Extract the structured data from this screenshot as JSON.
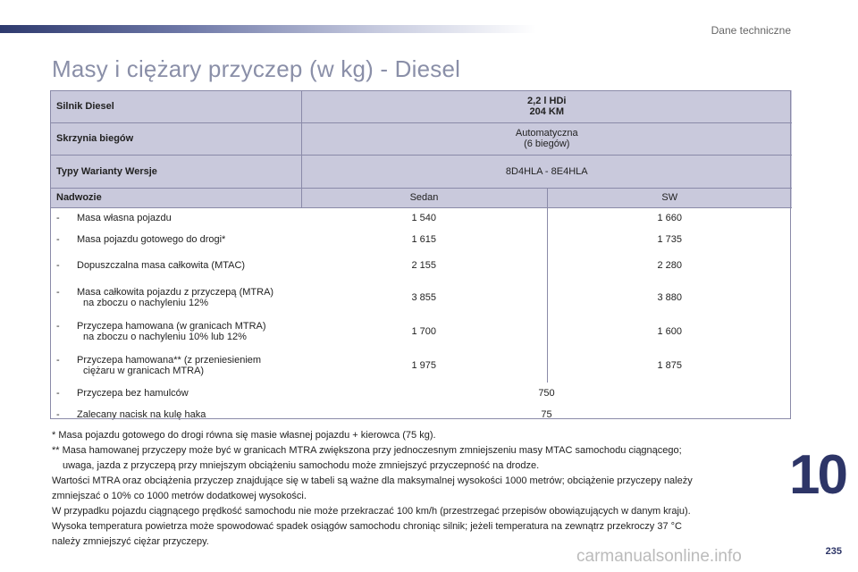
{
  "header": {
    "section": "Dane techniczne"
  },
  "page": {
    "title": "Masy i ciężary przyczep (w kg) - Diesel",
    "chapter": "10",
    "number": "235"
  },
  "table": {
    "engine_label": "Silnik Diesel",
    "engine_line1": "2,2 l HDi",
    "engine_line2": "204 KM",
    "gearbox_label": "Skrzynia biegów",
    "gearbox_line1": "Automatyczna",
    "gearbox_line2": "(6 biegów)",
    "types_label": "Typy Warianty Wersje",
    "types_value": "8D4HLA - 8E4HLA",
    "body_label": "Nadwozie",
    "body_sedan": "Sedan",
    "body_sw": "SW",
    "rows": [
      {
        "dash": "-",
        "label": "Masa własna pojazdu",
        "sedan": "1 540",
        "sw": "1 660"
      },
      {
        "dash": "-",
        "label": "Masa pojazdu gotowego do drogi*",
        "sedan": "1 615",
        "sw": "1 735"
      },
      {
        "dash": "-",
        "label": "Dopuszczalna masa całkowita (MTAC)",
        "sedan": "2 155",
        "sw": "2 280"
      },
      {
        "dash": "-",
        "label": "Masa całkowita pojazdu z przyczepą (MTRA)",
        "label2": "na zboczu o nachyleniu 12%",
        "sedan": "3 855",
        "sw": "3 880"
      },
      {
        "dash": "-",
        "label": "Przyczepa hamowana (w granicach MTRA)",
        "label2": "na zboczu o nachyleniu 10% lub 12%",
        "sedan": "1 700",
        "sw": "1 600"
      },
      {
        "dash": "-",
        "label": "Przyczepa hamowana** (z przeniesieniem",
        "label2": "ciężaru w granicach MTRA)",
        "sedan": "1 975",
        "sw": "1 875"
      },
      {
        "dash": "-",
        "label": "Przyczepa bez hamulców",
        "value": "750"
      },
      {
        "dash": "-",
        "label": "Zalecany nacisk na kulę haka",
        "value": "75"
      }
    ]
  },
  "notes": {
    "n1": "* Masa pojazdu gotowego do drogi równa się masie własnej pojazdu + kierowca (75 kg).",
    "n2": "** Masa hamowanej przyczepy może być w granicach MTRA zwiększona przy jednoczesnym zmniejszeniu masy MTAC samochodu ciągnącego;",
    "n2b": "uwaga, jazda z przyczepą przy mniejszym obciążeniu samochodu może zmniejszyć przyczepność na drodze.",
    "n3": "Wartości MTRA oraz obciążenia przyczep znajdujące się w tabeli są ważne dla maksymalnej wysokości 1000 metrów; obciążenie przyczepy należy",
    "n3b": "zmniejszać o 10% co 1000 metrów dodatkowej wysokości.",
    "n4": "W przypadku pojazdu ciągnącego prędkość samochodu nie może przekraczać 100 km/h (przestrzegać przepisów obowiązujących w danym kraju).",
    "n5": "Wysoka temperatura powietrza może spowodować spadek osiągów samochodu chroniąc silnik; jeżeli temperatura na zewnątrz przekroczy 37 °C",
    "n5b": "należy zmniejszyć ciężar przyczepy."
  },
  "watermark": "carmanualsonline.info"
}
